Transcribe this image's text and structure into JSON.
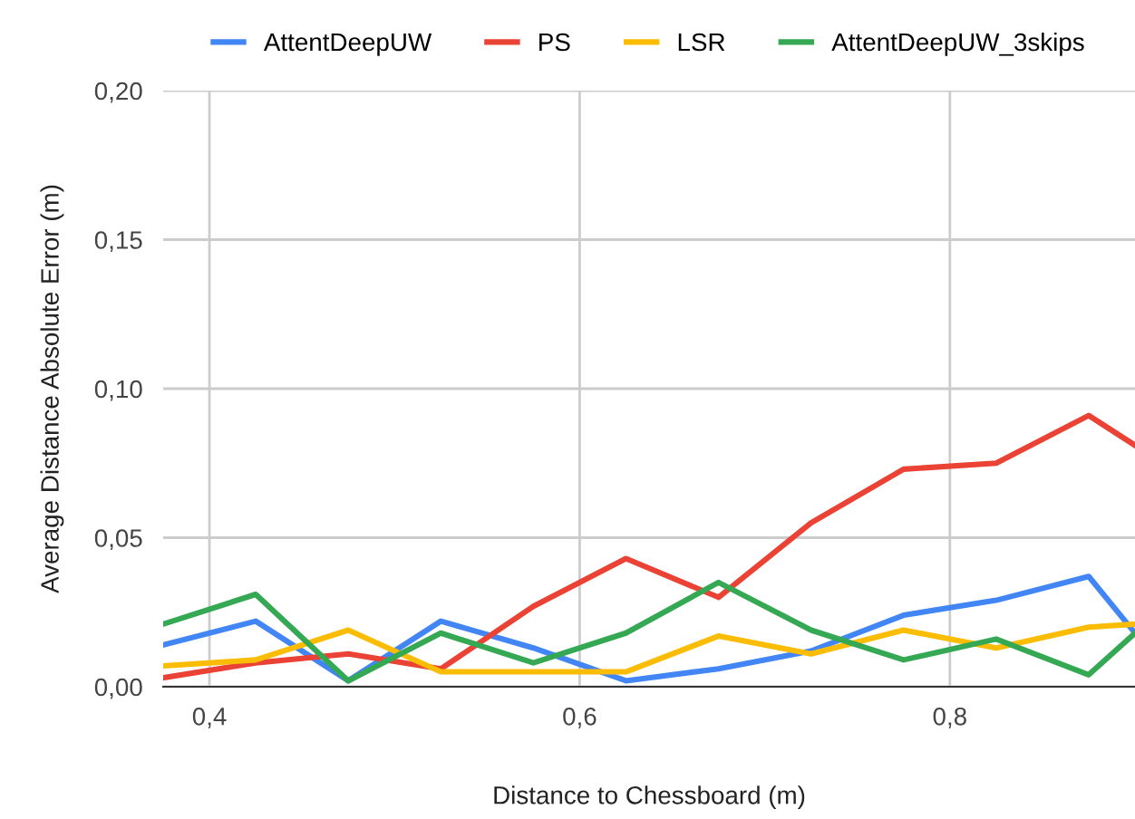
{
  "chart_data": {
    "type": "line",
    "xlabel": "Distance to Chessboard (m)",
    "ylabel": "Average Distance Absolute Error (m)",
    "x": [
      0.375,
      0.425,
      0.475,
      0.525,
      0.575,
      0.625,
      0.675,
      0.725,
      0.775,
      0.825,
      0.875,
      0.9
    ],
    "series": [
      {
        "name": "AttentDeepUW",
        "color": "#4285f4",
        "values": [
          0.014,
          0.022,
          0.002,
          0.022,
          0.013,
          0.002,
          0.006,
          0.012,
          0.024,
          0.029,
          0.037,
          0.018
        ]
      },
      {
        "name": "PS",
        "color": "#ea4335",
        "values": [
          0.003,
          0.008,
          0.011,
          0.006,
          0.027,
          0.043,
          0.03,
          0.055,
          0.073,
          0.075,
          0.091,
          0.081
        ]
      },
      {
        "name": "LSR",
        "color": "#fbbc04",
        "values": [
          0.007,
          0.009,
          0.019,
          0.005,
          0.005,
          0.005,
          0.017,
          0.011,
          0.019,
          0.013,
          0.02,
          0.021
        ]
      },
      {
        "name": "AttentDeepUW_3skips",
        "color": "#34a853",
        "values": [
          0.021,
          0.031,
          0.002,
          0.018,
          0.008,
          0.018,
          0.035,
          0.019,
          0.009,
          0.016,
          0.004,
          0.018
        ]
      }
    ],
    "xlim": [
      0.375,
      0.9
    ],
    "ylim": [
      0,
      0.2
    ],
    "xticks": [
      {
        "value": 0.4,
        "label": "0,4"
      },
      {
        "value": 0.6,
        "label": "0,6"
      },
      {
        "value": 0.8,
        "label": "0,8"
      }
    ],
    "yticks": [
      {
        "value": 0,
        "label": "0,00"
      },
      {
        "value": 0.05,
        "label": "0,05"
      },
      {
        "value": 0.1,
        "label": "0,10"
      },
      {
        "value": 0.15,
        "label": "0,15"
      },
      {
        "value": 0.2,
        "label": "0,20"
      }
    ],
    "grid": true,
    "legend": "top",
    "marker": "none",
    "line_style": "solid"
  }
}
